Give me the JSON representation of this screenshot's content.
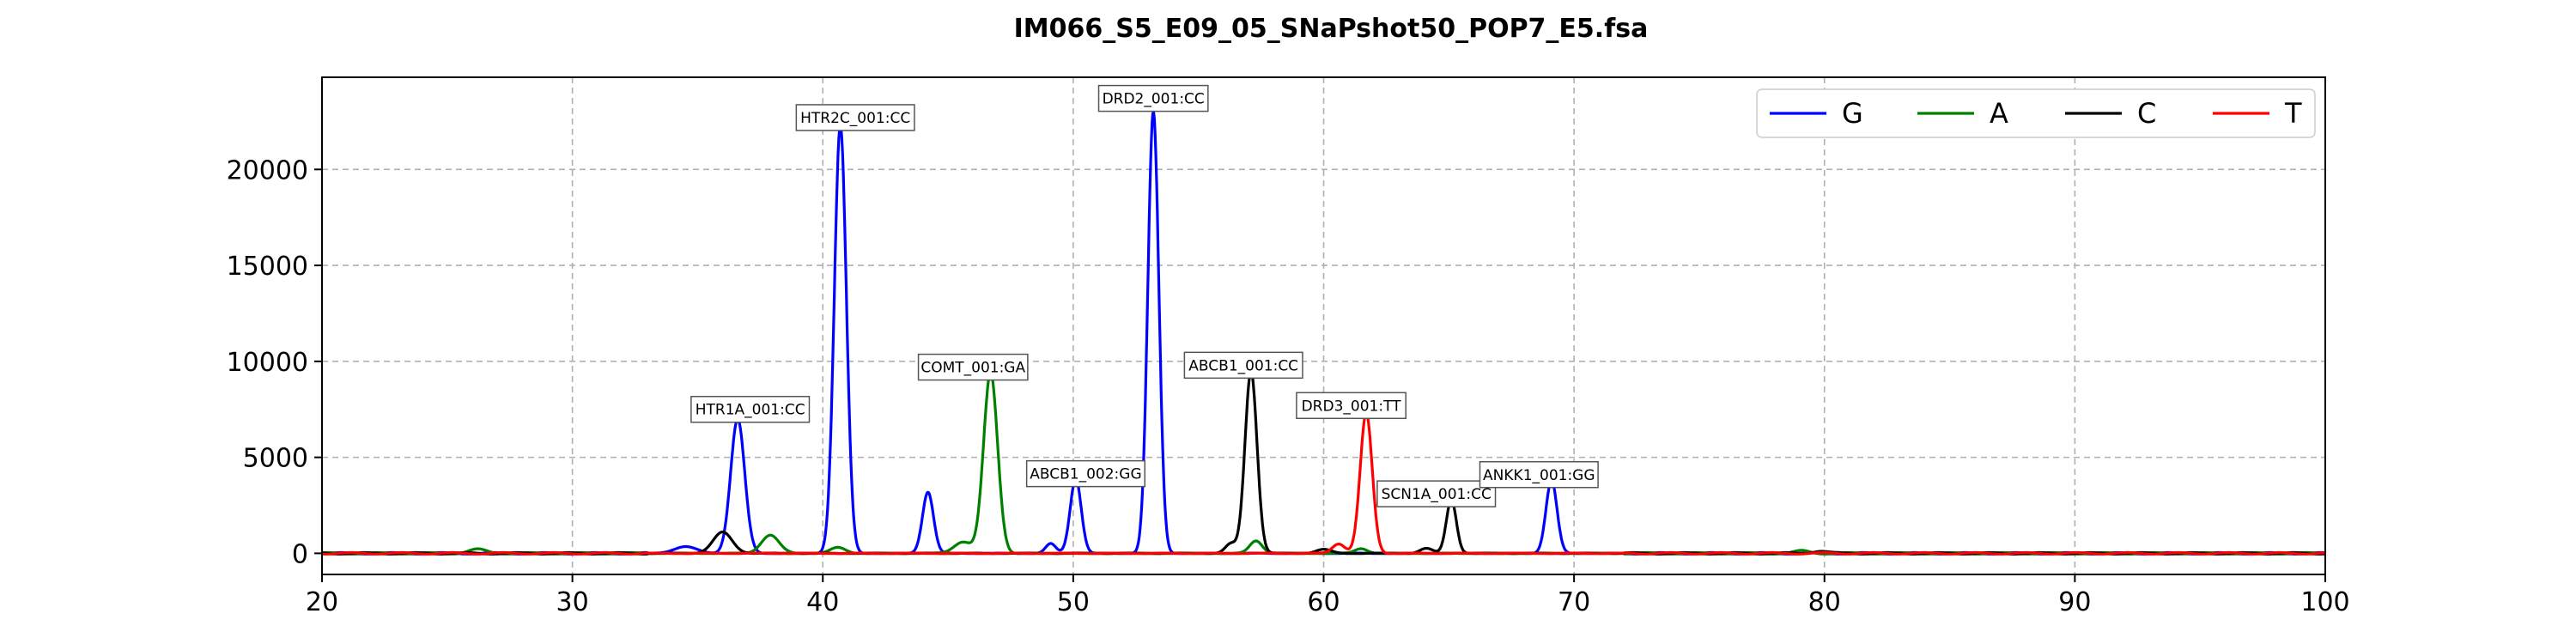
{
  "chart_data": {
    "type": "line",
    "title": "IM066_S5_E09_05_SNaPshot50_POP7_E5.fsa",
    "xlabel": "",
    "ylabel": "",
    "xlim": [
      20,
      100
    ],
    "ylim": [
      -1100,
      24800
    ],
    "x_ticks": [
      20,
      30,
      40,
      50,
      60,
      70,
      80,
      90,
      100
    ],
    "y_ticks": [
      0,
      5000,
      10000,
      15000,
      20000
    ],
    "grid": true,
    "legend_position": "top-right",
    "baseline": 0,
    "series": [
      {
        "name": "G",
        "color": "#0000ff",
        "peaks": [
          {
            "x": 34.5,
            "y": 350,
            "w": 0.45
          },
          {
            "x": 36.6,
            "y": 7000,
            "w": 0.28
          },
          {
            "x": 40.7,
            "y": 22300,
            "w": 0.24
          },
          {
            "x": 44.2,
            "y": 3200,
            "w": 0.22
          },
          {
            "x": 49.1,
            "y": 500,
            "w": 0.2
          },
          {
            "x": 50.1,
            "y": 3900,
            "w": 0.22
          },
          {
            "x": 53.2,
            "y": 23000,
            "w": 0.22
          },
          {
            "x": 69.1,
            "y": 3800,
            "w": 0.22
          }
        ]
      },
      {
        "name": "A",
        "color": "#008000",
        "peaks": [
          {
            "x": 26.2,
            "y": 200,
            "w": 0.35
          },
          {
            "x": 37.9,
            "y": 950,
            "w": 0.35
          },
          {
            "x": 40.6,
            "y": 300,
            "w": 0.3
          },
          {
            "x": 45.6,
            "y": 600,
            "w": 0.35
          },
          {
            "x": 46.7,
            "y": 9400,
            "w": 0.28
          },
          {
            "x": 57.3,
            "y": 650,
            "w": 0.25
          },
          {
            "x": 61.5,
            "y": 250,
            "w": 0.25
          },
          {
            "x": 79.1,
            "y": 120,
            "w": 0.3
          }
        ]
      },
      {
        "name": "C",
        "color": "#000000",
        "peaks": [
          {
            "x": 36.0,
            "y": 1100,
            "w": 0.38
          },
          {
            "x": 56.3,
            "y": 500,
            "w": 0.22
          },
          {
            "x": 57.1,
            "y": 9500,
            "w": 0.24
          },
          {
            "x": 60.0,
            "y": 200,
            "w": 0.3
          },
          {
            "x": 64.1,
            "y": 250,
            "w": 0.25
          },
          {
            "x": 65.1,
            "y": 2800,
            "w": 0.2
          },
          {
            "x": 79.8,
            "y": 120,
            "w": 0.3
          }
        ]
      },
      {
        "name": "T",
        "color": "#ff0000",
        "peaks": [
          {
            "x": 60.6,
            "y": 500,
            "w": 0.25
          },
          {
            "x": 61.7,
            "y": 7300,
            "w": 0.24
          }
        ]
      }
    ],
    "annotations": [
      {
        "text": "HTR1A_001:CC",
        "x": 37.1,
        "y": 7500
      },
      {
        "text": "HTR2C_001:CC",
        "x": 41.3,
        "y": 22700
      },
      {
        "text": "COMT_001:GA",
        "x": 46.0,
        "y": 9700
      },
      {
        "text": "ABCB1_002:GG",
        "x": 50.5,
        "y": 4150
      },
      {
        "text": "DRD2_001:CC",
        "x": 53.2,
        "y": 23700
      },
      {
        "text": "ABCB1_001:CC",
        "x": 56.8,
        "y": 9800
      },
      {
        "text": "DRD3_001:TT",
        "x": 61.1,
        "y": 7700
      },
      {
        "text": "SCN1A_001:CC",
        "x": 64.5,
        "y": 3100
      },
      {
        "text": "ANKK1_001:GG",
        "x": 68.6,
        "y": 4100
      }
    ]
  }
}
